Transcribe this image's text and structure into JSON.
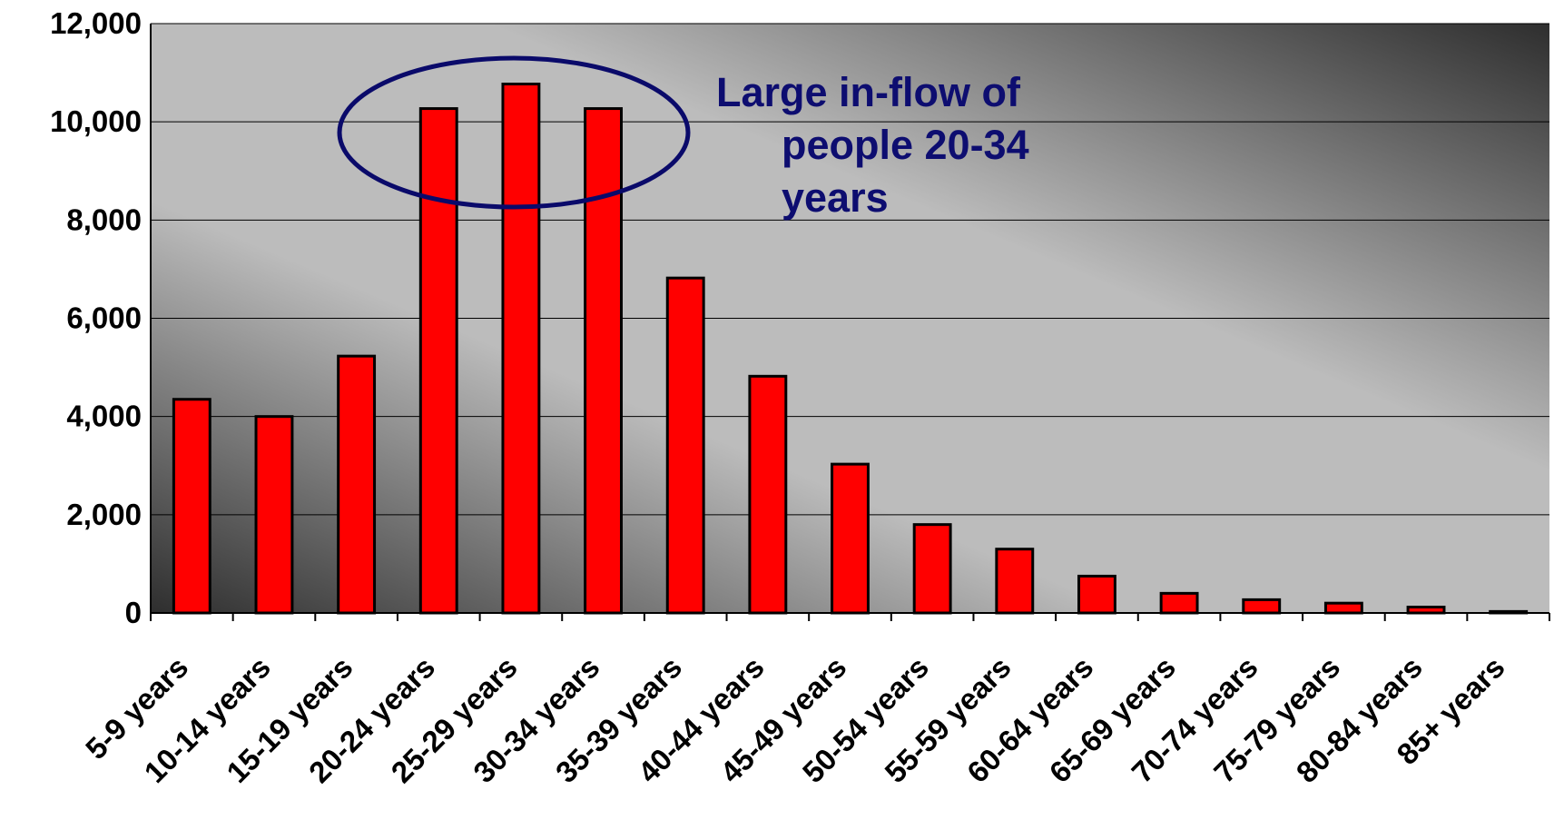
{
  "chart_data": {
    "type": "bar",
    "categories": [
      "5-9 years",
      "10-14 years",
      "15-19 years",
      "20-24 years",
      "25-29 years",
      "30-34 years",
      "35-39 years",
      "40-44 years",
      "45-49 years",
      "50-54 years",
      "55-59 years",
      "60-64 years",
      "65-69 years",
      "70-74 years",
      "75-79 years",
      "80-84 years",
      "85+ years"
    ],
    "values": [
      4350,
      4000,
      5230,
      10270,
      10770,
      10270,
      6820,
      4820,
      3030,
      1800,
      1300,
      750,
      400,
      270,
      200,
      120,
      30
    ],
    "color": "#ff0000",
    "ylim": [
      0,
      12000
    ],
    "yticks": [
      0,
      {
        "value": 2000,
        "label": "2,000"
      },
      {
        "value": 4000,
        "label": "4,000"
      },
      {
        "value": 6000,
        "label": "6,000"
      },
      {
        "value": 8000,
        "label": "8,000"
      },
      {
        "value": 10000,
        "label": "10,000"
      },
      {
        "value": 12000,
        "label": "12,000"
      }
    ],
    "grid": true,
    "annotation": [
      "Large in-flow of",
      "people 20-34",
      "years"
    ]
  }
}
